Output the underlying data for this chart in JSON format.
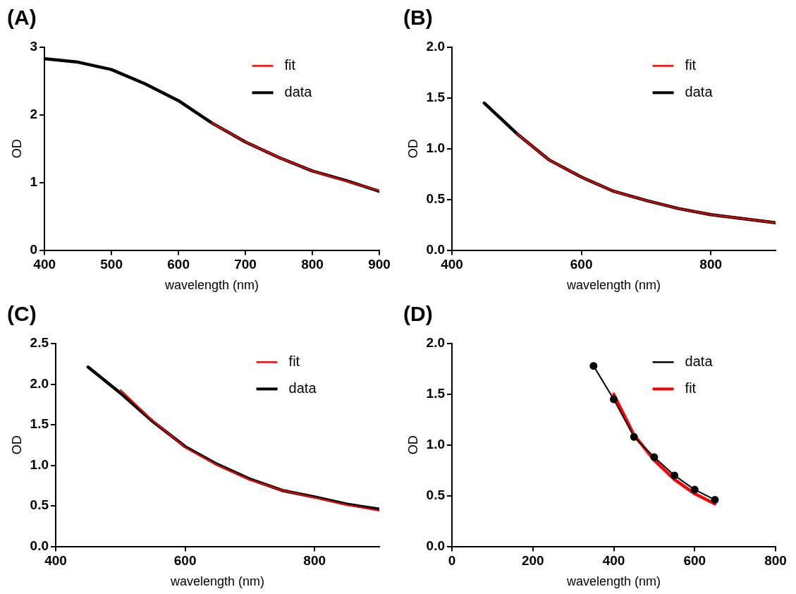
{
  "chart_data": [
    {
      "type": "line",
      "title": "(A)",
      "xlabel": "wavelength (nm)",
      "ylabel": "OD",
      "xlim": [
        400,
        900
      ],
      "xticks": [
        400,
        500,
        600,
        700,
        800,
        900
      ],
      "ylim": [
        0,
        3
      ],
      "yticks": [
        0,
        1,
        2,
        3
      ],
      "grid": false,
      "legend": "top right",
      "series": [
        {
          "name": "fit",
          "color": "#ff0000",
          "x": [
            650,
            700,
            750,
            800,
            850,
            900
          ],
          "values": [
            1.88,
            1.6,
            1.37,
            1.17,
            1.02,
            0.88
          ]
        },
        {
          "name": "data",
          "color": "#000000",
          "x": [
            400,
            450,
            500,
            550,
            600,
            650,
            700,
            750,
            800,
            850,
            900
          ],
          "values": [
            2.83,
            2.78,
            2.67,
            2.46,
            2.21,
            1.88,
            1.6,
            1.37,
            1.17,
            1.03,
            0.87
          ]
        }
      ]
    },
    {
      "type": "line",
      "title": "(B)",
      "xlabel": "wavelength (nm)",
      "ylabel": "OD",
      "xlim": [
        400,
        900
      ],
      "xticks": [
        400,
        600,
        800
      ],
      "ylim": [
        0,
        2
      ],
      "yticks": [
        {
          "value": 0,
          "label": "0.0"
        },
        0.5,
        {
          "value": 1,
          "label": "1.0"
        },
        1.5,
        {
          "value": 2,
          "label": "2.0"
        }
      ],
      "grid": false,
      "legend": "top right",
      "series": [
        {
          "name": "fit",
          "color": "#ff0000",
          "x": [
            500,
            550,
            600,
            650,
            700,
            750,
            800,
            850,
            900
          ],
          "values": [
            1.15,
            0.89,
            0.72,
            0.58,
            0.49,
            0.41,
            0.35,
            0.31,
            0.27
          ]
        },
        {
          "name": "data",
          "color": "#000000",
          "x": [
            450,
            500,
            550,
            600,
            650,
            700,
            750,
            800,
            850,
            900
          ],
          "values": [
            1.45,
            1.15,
            0.89,
            0.72,
            0.58,
            0.49,
            0.41,
            0.35,
            0.31,
            0.27
          ]
        }
      ]
    },
    {
      "type": "line",
      "title": "(C)",
      "xlabel": "wavelength (nm)",
      "ylabel": "OD",
      "xlim": [
        400,
        900
      ],
      "xticks": [
        400,
        600,
        800
      ],
      "ylim": [
        0,
        2.5
      ],
      "yticks": [
        {
          "value": 0,
          "label": "0.0"
        },
        0.5,
        {
          "value": 1,
          "label": "1.0"
        },
        1.5,
        {
          "value": 2,
          "label": "2.0"
        },
        2.5
      ],
      "grid": false,
      "legend": "top right",
      "series": [
        {
          "name": "fit",
          "color": "#ff0000",
          "x": [
            500,
            550,
            600,
            650,
            700,
            750,
            800,
            850,
            900
          ],
          "values": [
            1.93,
            1.55,
            1.22,
            1.0,
            0.82,
            0.69,
            0.6,
            0.51,
            0.44
          ]
        },
        {
          "name": "data",
          "color": "#000000",
          "x": [
            450,
            500,
            550,
            600,
            650,
            700,
            750,
            800,
            850,
            900
          ],
          "values": [
            2.21,
            1.89,
            1.54,
            1.23,
            1.01,
            0.83,
            0.69,
            0.61,
            0.52,
            0.46
          ]
        }
      ]
    },
    {
      "type": "line",
      "title": "(D)",
      "xlabel": "wavelength (nm)",
      "ylabel": "OD",
      "xlim": [
        0,
        800
      ],
      "xticks": [
        0,
        200,
        400,
        600,
        800
      ],
      "ylim": [
        0,
        2
      ],
      "yticks": [
        {
          "value": 0,
          "label": "0.0"
        },
        0.5,
        {
          "value": 1,
          "label": "1.0"
        },
        1.5,
        {
          "value": 2,
          "label": "2.0"
        }
      ],
      "grid": false,
      "legend": "top right",
      "series": [
        {
          "name": "data",
          "color": "#000000",
          "marker": "circle",
          "x": [
            350,
            400,
            450,
            500,
            550,
            600,
            650
          ],
          "values": [
            1.78,
            1.45,
            1.08,
            0.88,
            0.7,
            0.56,
            0.46
          ]
        },
        {
          "name": "fit",
          "color": "#ff0000",
          "x": [
            400,
            450,
            500,
            550,
            600,
            650
          ],
          "values": [
            1.5,
            1.1,
            0.85,
            0.66,
            0.52,
            0.42
          ]
        }
      ]
    }
  ]
}
